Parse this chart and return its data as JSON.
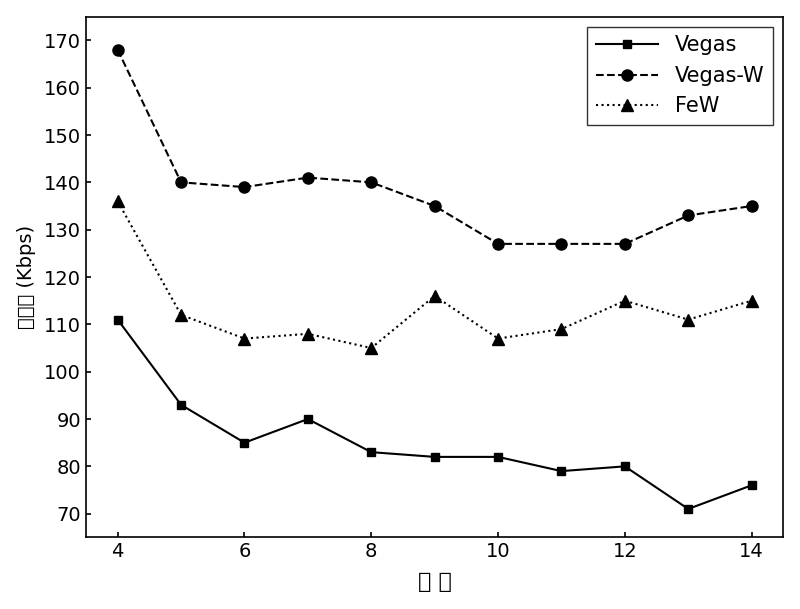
{
  "x": [
    4,
    5,
    6,
    7,
    8,
    9,
    10,
    11,
    12,
    13,
    14
  ],
  "vegas": [
    111,
    93,
    85,
    90,
    83,
    82,
    82,
    79,
    80,
    71,
    76
  ],
  "vegas_w": [
    168,
    140,
    139,
    141,
    140,
    135,
    127,
    127,
    127,
    133,
    135
  ],
  "few": [
    136,
    112,
    107,
    108,
    105,
    116,
    107,
    109,
    115,
    111,
    115
  ],
  "xlabel": "跳 数",
  "ylabel": "吞吐量 (Kbps)",
  "ylim": [
    65,
    175
  ],
  "yticks": [
    70,
    80,
    90,
    100,
    110,
    120,
    130,
    140,
    150,
    160,
    170
  ],
  "xticks": [
    4,
    6,
    8,
    10,
    12,
    14
  ],
  "legend_labels": [
    "Vegas",
    "Vegas-W",
    "FeW"
  ],
  "line_color": "#000000",
  "bg_color": "#ffffff"
}
